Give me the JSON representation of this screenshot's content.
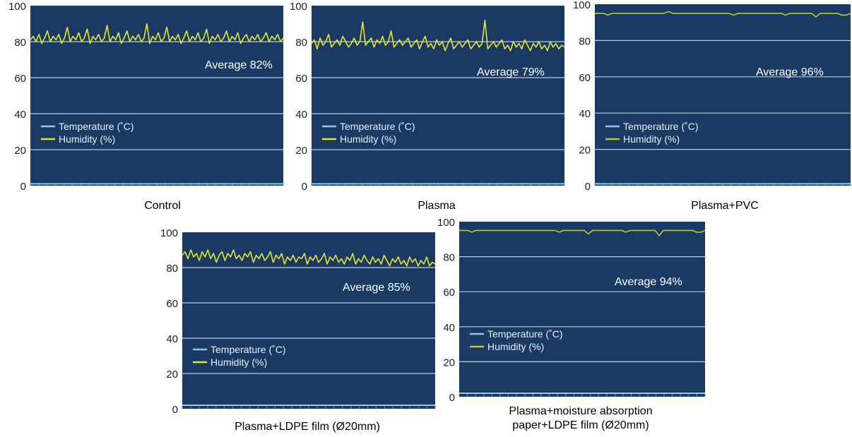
{
  "chart_data": [
    {
      "type": "line",
      "caption": [
        "Control"
      ],
      "annotation": "Average 82%",
      "ylim": [
        0,
        100
      ],
      "yticks": [
        "0",
        "20",
        "40",
        "60",
        "80",
        "100"
      ],
      "legend": [
        "Temperature (˚C)",
        "Humidity (%)"
      ],
      "legend_position": "left",
      "grid": true,
      "series": [
        {
          "name": "Temperature (˚C)",
          "color": "#8ec9e8",
          "values": [
            1,
            1,
            1,
            1,
            1,
            1,
            1,
            1,
            1,
            1,
            1,
            1,
            1,
            1,
            1,
            1,
            1,
            1,
            1,
            1,
            1,
            1,
            1,
            1,
            1,
            1,
            1,
            1,
            1,
            1,
            1,
            1,
            1,
            1,
            1,
            1,
            1,
            1,
            1,
            1,
            1,
            1,
            1,
            1,
            1,
            1,
            1,
            1,
            1,
            1,
            1,
            1,
            1,
            1,
            1,
            1,
            1,
            1,
            1,
            1,
            1,
            1,
            1,
            1,
            1,
            1,
            1,
            1,
            1,
            1,
            1,
            1,
            1,
            1,
            1,
            1,
            1,
            1,
            1,
            1,
            1,
            1,
            1,
            1,
            1,
            1,
            1,
            1,
            1,
            1
          ]
        },
        {
          "name": "Humidity (%)",
          "color": "#e3e633",
          "values": [
            81,
            83,
            80,
            84,
            79,
            82,
            86,
            80,
            83,
            81,
            84,
            79,
            82,
            88,
            80,
            83,
            81,
            85,
            80,
            82,
            87,
            79,
            83,
            81,
            84,
            80,
            82,
            89,
            80,
            83,
            81,
            85,
            79,
            82,
            86,
            80,
            83,
            81,
            84,
            80,
            82,
            90,
            79,
            83,
            81,
            85,
            80,
            82,
            88,
            80,
            83,
            81,
            84,
            79,
            82,
            86,
            80,
            83,
            81,
            85,
            80,
            82,
            87,
            79,
            83,
            81,
            84,
            80,
            82,
            86,
            80,
            83,
            81,
            85,
            79,
            82,
            84,
            80,
            83,
            81,
            84,
            80,
            82,
            85,
            80,
            83,
            81,
            84,
            80,
            82
          ]
        }
      ]
    },
    {
      "type": "line",
      "caption": [
        "Plasma"
      ],
      "annotation": "Average 79%",
      "ylim": [
        0,
        100
      ],
      "yticks": [
        "0",
        "20",
        "40",
        "60",
        "80",
        "100"
      ],
      "legend": [
        "Temperature (˚C)",
        "Humidity (%)"
      ],
      "legend_position": "left",
      "grid": true,
      "series": [
        {
          "name": "Temperature (˚C)",
          "color": "#8ec9e8",
          "values": [
            1,
            1,
            1,
            1,
            1,
            1,
            1,
            1,
            1,
            1,
            1,
            1,
            1,
            1,
            1,
            1,
            1,
            1,
            1,
            1,
            1,
            1,
            1,
            1,
            1,
            1,
            1,
            1,
            1,
            1,
            1,
            1,
            1,
            1,
            1,
            1,
            1,
            1,
            1,
            1,
            1,
            1,
            1,
            1,
            1,
            1,
            1,
            1,
            1,
            1,
            1,
            1,
            1,
            1,
            1,
            1,
            1,
            1,
            1,
            1,
            1,
            1,
            1,
            1,
            1,
            1,
            1,
            1,
            1,
            1,
            1,
            1,
            1,
            1,
            1,
            1,
            1,
            1,
            1,
            1,
            1,
            1,
            1,
            1,
            1,
            1,
            1,
            1,
            1,
            1
          ]
        },
        {
          "name": "Humidity (%)",
          "color": "#e3e633",
          "values": [
            79,
            81,
            76,
            82,
            78,
            80,
            84,
            77,
            79,
            81,
            78,
            83,
            80,
            77,
            79,
            82,
            78,
            80,
            91,
            78,
            80,
            82,
            77,
            81,
            79,
            83,
            78,
            80,
            86,
            77,
            79,
            81,
            78,
            80,
            82,
            77,
            79,
            81,
            76,
            80,
            83,
            77,
            79,
            76,
            81,
            78,
            80,
            75,
            79,
            82,
            76,
            78,
            80,
            77,
            79,
            81,
            76,
            78,
            80,
            77,
            79,
            92,
            76,
            78,
            80,
            77,
            79,
            81,
            76,
            78,
            75,
            80,
            77,
            79,
            76,
            81,
            78,
            75,
            79,
            77,
            80,
            76,
            78,
            75,
            80,
            77,
            79,
            76,
            78,
            77
          ]
        }
      ]
    },
    {
      "type": "line",
      "caption": [
        "Plasma+PVC"
      ],
      "annotation": "Average 96%",
      "ylim": [
        0,
        100
      ],
      "yticks": [
        "0",
        "20",
        "40",
        "60",
        "80",
        "100"
      ],
      "legend": [
        "Temperature (˚C)",
        "Humidity (%)"
      ],
      "legend_position": "left",
      "grid": true,
      "series": [
        {
          "name": "Temperature (˚C)",
          "color": "#8ec9e8",
          "values": [
            1,
            1,
            1,
            1,
            1,
            1,
            1,
            1,
            1,
            1,
            1,
            1,
            1,
            1,
            1,
            1,
            1,
            1,
            1,
            1,
            1,
            1,
            1,
            1,
            1,
            1,
            1,
            1,
            1,
            1,
            1,
            1,
            1,
            1,
            1,
            1,
            1,
            1,
            1,
            1,
            1,
            1,
            1,
            1,
            1,
            1,
            1,
            1,
            1,
            1,
            1,
            1,
            1,
            1,
            1,
            1,
            1,
            1,
            1,
            1
          ]
        },
        {
          "name": "Humidity (%)",
          "color": "#bfc43a",
          "values": [
            95,
            95,
            95,
            94,
            95,
            95,
            95,
            95,
            95,
            95,
            95,
            95,
            95,
            95,
            95,
            95,
            95,
            96,
            95,
            95,
            95,
            95,
            95,
            95,
            95,
            95,
            95,
            95,
            95,
            95,
            95,
            95,
            94,
            95,
            95,
            95,
            95,
            95,
            95,
            95,
            95,
            95,
            95,
            95,
            94,
            95,
            95,
            95,
            95,
            95,
            95,
            93,
            95,
            95,
            95,
            95,
            95,
            94,
            94,
            95
          ]
        }
      ]
    },
    {
      "type": "line",
      "caption": [
        "Plasma+LDPE film (Ø20mm)"
      ],
      "annotation": "Average 85%",
      "ylim": [
        0,
        100
      ],
      "yticks": [
        "0",
        "20",
        "40",
        "60",
        "80",
        "100"
      ],
      "legend": [
        "Temperature (˚C)",
        "Humidity (%)"
      ],
      "legend_position": "left",
      "grid": true,
      "series": [
        {
          "name": "Temperature (˚C)",
          "color": "#8ec9e8",
          "values": [
            2,
            2,
            2,
            2,
            2,
            2,
            2,
            2,
            2,
            2,
            2,
            2,
            2,
            2,
            2,
            2,
            2,
            2,
            2,
            2,
            2,
            2,
            2,
            2,
            2,
            2,
            2,
            2,
            2,
            2,
            2,
            2,
            2,
            2,
            2,
            2,
            2,
            2,
            2,
            2,
            2,
            2,
            2,
            2,
            2,
            2,
            2,
            2,
            2,
            2,
            2,
            2,
            2,
            2,
            2,
            2,
            2,
            2,
            2,
            2,
            2,
            2,
            2,
            2,
            2,
            2,
            2,
            2,
            2,
            2,
            2,
            2,
            2,
            2,
            2,
            2,
            2,
            2,
            2,
            2,
            2,
            2,
            2,
            2,
            2,
            2,
            2,
            2,
            2,
            2
          ]
        },
        {
          "name": "Humidity (%)",
          "color": "#e3e633",
          "values": [
            87,
            89,
            85,
            90,
            86,
            88,
            84,
            89,
            86,
            90,
            85,
            88,
            83,
            87,
            89,
            84,
            88,
            86,
            90,
            85,
            87,
            84,
            88,
            86,
            89,
            83,
            87,
            85,
            88,
            84,
            86,
            89,
            83,
            87,
            85,
            88,
            82,
            86,
            84,
            87,
            83,
            86,
            85,
            88,
            82,
            86,
            84,
            87,
            83,
            85,
            88,
            82,
            86,
            84,
            87,
            83,
            85,
            82,
            86,
            84,
            88,
            82,
            85,
            83,
            87,
            84,
            82,
            86,
            83,
            85,
            82,
            87,
            84,
            81,
            85,
            83,
            86,
            82,
            84,
            81,
            86,
            83,
            85,
            81,
            84,
            82,
            86,
            81,
            83,
            82
          ]
        }
      ]
    },
    {
      "type": "line",
      "caption": [
        "Plasma+moisture absorption",
        "paper+LDPE film (Ø20mm)"
      ],
      "annotation": "Average 94%",
      "ylim": [
        0,
        100
      ],
      "yticks": [
        "0",
        "20",
        "40",
        "60",
        "80",
        "100"
      ],
      "legend": [
        "Temperature (˚C)",
        "Humidity (%)"
      ],
      "legend_position": "left",
      "grid": true,
      "series": [
        {
          "name": "Temperature (˚C)",
          "color": "#8ec9e8",
          "values": [
            2,
            2,
            2,
            2,
            2,
            2,
            2,
            2,
            2,
            2,
            2,
            2,
            2,
            2,
            2,
            2,
            2,
            2,
            2,
            2,
            2,
            2,
            2,
            2,
            2,
            2,
            2,
            2,
            2,
            2,
            2,
            2,
            2,
            2,
            2,
            2,
            2,
            2,
            2,
            2,
            2,
            2,
            2,
            2,
            2,
            2,
            2,
            2,
            2,
            2,
            2,
            2,
            2,
            2,
            2,
            2,
            2,
            2,
            2,
            2
          ]
        },
        {
          "name": "Humidity (%)",
          "color": "#bfc43a",
          "values": [
            95,
            95,
            95,
            94,
            95,
            95,
            95,
            95,
            95,
            95,
            95,
            95,
            95,
            95,
            95,
            95,
            95,
            95,
            95,
            95,
            95,
            95,
            95,
            95,
            94,
            95,
            95,
            95,
            95,
            95,
            95,
            93,
            95,
            95,
            95,
            95,
            95,
            95,
            95,
            95,
            94,
            95,
            95,
            95,
            95,
            95,
            95,
            95,
            92,
            95,
            95,
            95,
            95,
            95,
            95,
            95,
            95,
            94,
            94,
            95
          ]
        }
      ]
    }
  ]
}
